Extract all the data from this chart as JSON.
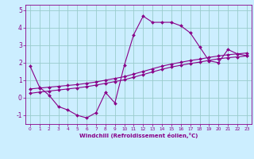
{
  "xlabel": "Windchill (Refroidissement éolien,°C)",
  "bg_color": "#cceeff",
  "line_color": "#880088",
  "grid_color": "#99cccc",
  "xlim": [
    -0.5,
    23.5
  ],
  "ylim": [
    -1.5,
    5.3
  ],
  "xticks": [
    0,
    1,
    2,
    3,
    4,
    5,
    6,
    7,
    8,
    9,
    10,
    11,
    12,
    13,
    14,
    15,
    16,
    17,
    18,
    19,
    20,
    21,
    22,
    23
  ],
  "yticks": [
    -1,
    0,
    1,
    2,
    3,
    4,
    5
  ],
  "line1_x": [
    0,
    1,
    2,
    3,
    4,
    5,
    6,
    7,
    8,
    9,
    10,
    11,
    12,
    13,
    14,
    15,
    16,
    17,
    18,
    19,
    20,
    21,
    22,
    23
  ],
  "line1_y": [
    1.8,
    0.6,
    0.15,
    -0.5,
    -0.7,
    -1.0,
    -1.15,
    -0.85,
    0.3,
    -0.3,
    1.85,
    3.6,
    4.65,
    4.3,
    4.3,
    4.3,
    4.1,
    3.7,
    2.9,
    2.1,
    2.0,
    2.75,
    2.5,
    2.4
  ],
  "line2_x": [
    0,
    1,
    2,
    3,
    4,
    5,
    6,
    7,
    8,
    9,
    10,
    11,
    12,
    13,
    14,
    15,
    16,
    17,
    18,
    19,
    20,
    21,
    22,
    23
  ],
  "line2_y": [
    0.5,
    0.55,
    0.6,
    0.65,
    0.7,
    0.75,
    0.82,
    0.9,
    1.0,
    1.1,
    1.2,
    1.35,
    1.5,
    1.65,
    1.8,
    1.92,
    2.02,
    2.12,
    2.2,
    2.3,
    2.38,
    2.45,
    2.5,
    2.55
  ],
  "line3_x": [
    0,
    1,
    2,
    3,
    4,
    5,
    6,
    7,
    8,
    9,
    10,
    11,
    12,
    13,
    14,
    15,
    16,
    17,
    18,
    19,
    20,
    21,
    22,
    23
  ],
  "line3_y": [
    0.25,
    0.32,
    0.38,
    0.44,
    0.5,
    0.56,
    0.63,
    0.72,
    0.82,
    0.92,
    1.02,
    1.17,
    1.32,
    1.47,
    1.62,
    1.75,
    1.85,
    1.95,
    2.03,
    2.13,
    2.22,
    2.28,
    2.33,
    2.38
  ]
}
